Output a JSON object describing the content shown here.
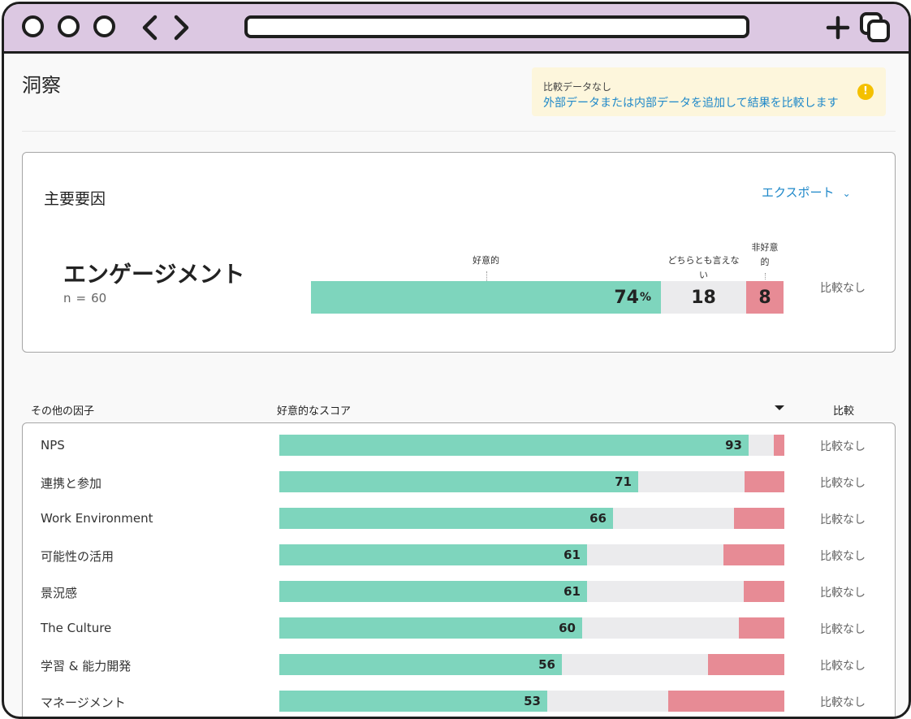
{
  "page": {
    "title": "洞察",
    "notice": {
      "title": "比較データなし",
      "message": "外部データまたは内部データを追加して結果を比較します",
      "icon": "warning-icon"
    }
  },
  "key_driver": {
    "section_title": "主要要因",
    "export_label": "エクスポート",
    "metric_name": "エンゲージメント",
    "n_label": "n",
    "n_eq": "=",
    "n_value": "60",
    "labels": {
      "favorable": "好意的",
      "neutral_line1": "どちらとも言えな",
      "neutral_line2": "い",
      "unfavorable_line1": "非好意",
      "unfavorable_line2": "的"
    },
    "favorable": 74,
    "favorable_display": "74",
    "percent_sign": "%",
    "neutral": 18,
    "neutral_display": "18",
    "unfavorable": 8,
    "unfavorable_display": "8",
    "compare": "比較なし"
  },
  "factors": {
    "header_factor": "その他の因子",
    "header_score": "好意的なスコア",
    "header_compare": "比較",
    "rows": [
      {
        "label": "NPS",
        "favorable": 93,
        "neutral": 5,
        "unfavorable": 2,
        "value": "93",
        "compare": "比較なし"
      },
      {
        "label": "連携と参加",
        "favorable": 71,
        "neutral": 21,
        "unfavorable": 8,
        "value": "71",
        "compare": "比較なし"
      },
      {
        "label": "Work Environment",
        "favorable": 66,
        "neutral": 24,
        "unfavorable": 10,
        "value": "66",
        "compare": "比較なし"
      },
      {
        "label": "可能性の活用",
        "favorable": 61,
        "neutral": 27,
        "unfavorable": 12,
        "value": "61",
        "compare": "比較なし"
      },
      {
        "label": "景況感",
        "favorable": 61,
        "neutral": 31,
        "unfavorable": 8,
        "value": "61",
        "compare": "比較なし"
      },
      {
        "label": "The Culture",
        "favorable": 60,
        "neutral": 31,
        "unfavorable": 9,
        "value": "60",
        "compare": "比較なし"
      },
      {
        "label": "学習 & 能力開発",
        "favorable": 56,
        "neutral": 29,
        "unfavorable": 15,
        "value": "56",
        "compare": "比較なし"
      },
      {
        "label": "マネージメント",
        "favorable": 53,
        "neutral": 24,
        "unfavorable": 23,
        "value": "53",
        "compare": "比較なし"
      }
    ]
  },
  "colors": {
    "favorable": "#7ed5bd",
    "neutral": "#ebebed",
    "unfavorable": "#e78b95",
    "link": "#1e88c9",
    "browser_chrome": "#dcc8e2"
  }
}
